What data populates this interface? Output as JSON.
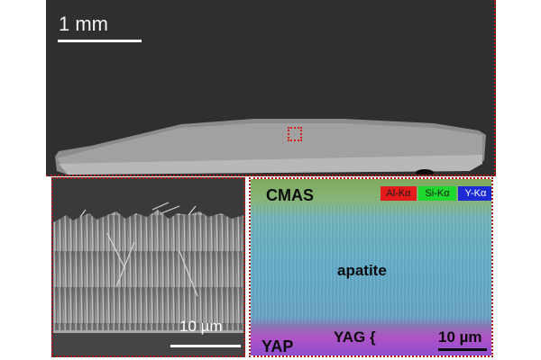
{
  "top_panel": {
    "scale_label": "1 mm"
  },
  "fiber_panel": {
    "scale_label": "10 µm"
  },
  "eds_panel": {
    "labels": {
      "cmas": "CMAS",
      "apatite": "apatite",
      "yag": "YAG",
      "yap": "YAP"
    },
    "scale_label": "10 µm",
    "legend": [
      {
        "label": "Al-Kα",
        "color": "#e41b1b"
      },
      {
        "label": "Si-Kα",
        "color": "#1fd82d"
      },
      {
        "label": "Y-Kα",
        "color": "#1d2bd4"
      }
    ]
  }
}
